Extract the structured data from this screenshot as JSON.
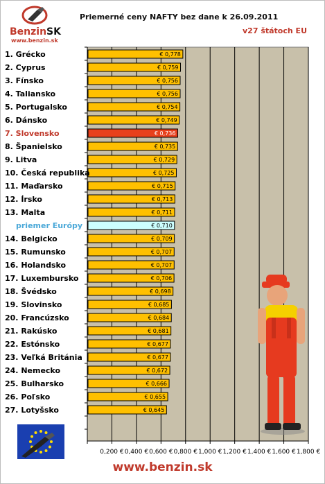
{
  "header": {
    "title": "Priemerné ceny NAFTY bez dane k 26.09.2011",
    "subtitle": "v27 štátoch EU"
  },
  "logo": {
    "brand": "Benzin",
    "brand_suffix": "SK",
    "url": "www.benzin.sk"
  },
  "footer": {
    "url": "www.benzin.sk"
  },
  "colors": {
    "plot_background": "#c8c0aa",
    "bar": "#ffc000",
    "highlight_bar": "#e8401c",
    "average_bar": "#ccffff",
    "highlight_label": "#c0392b",
    "average_label": "#4aa8d8",
    "grid": "#000000"
  },
  "chart_data": {
    "type": "bar",
    "orientation": "horizontal",
    "categories": [
      "1. Grécko",
      "2. Cyprus",
      "3. Fínsko",
      "4. Taliansko",
      "5. Portugalsko",
      "6. Dánsko",
      "7. Slovensko",
      "8. Španielsko",
      "9. Litva",
      "10. Česká republika",
      "11. Maďarsko",
      "12. Írsko",
      "13. Malta",
      "priemer Európy",
      "14. Belgicko",
      "15. Rumunsko",
      "16. Holandsko",
      "17. Luxembursko",
      "18. Švédsko",
      "19. Slovinsko",
      "20. Francúzsko",
      "21. Rakúsko",
      "22. Estónsko",
      "23. Veľká Británia",
      "24. Nemecko",
      "25. Bulharsko",
      "26. Poľsko",
      "27. Lotyšsko"
    ],
    "values": [
      0.778,
      0.759,
      0.756,
      0.756,
      0.754,
      0.749,
      0.736,
      0.735,
      0.729,
      0.725,
      0.715,
      0.713,
      0.711,
      0.71,
      0.709,
      0.707,
      0.707,
      0.706,
      0.698,
      0.685,
      0.684,
      0.681,
      0.677,
      0.677,
      0.672,
      0.666,
      0.655,
      0.645
    ],
    "value_labels": [
      "€ 0,778",
      "€ 0,759",
      "€ 0,756",
      "€ 0,756",
      "€ 0,754",
      "€ 0,749",
      "€ 0,736",
      "€ 0,735",
      "€ 0,729",
      "€ 0,725",
      "€ 0,715",
      "€ 0,713",
      "€ 0,711",
      "€ 0,710",
      "€ 0,709",
      "€ 0,707",
      "€ 0,707",
      "€ 0,706",
      "€ 0,698",
      "€ 0,685",
      "€ 0,684",
      "€ 0,681",
      "€ 0,677",
      "€ 0,677",
      "€ 0,672",
      "€ 0,666",
      "€ 0,655",
      "€ 0,645"
    ],
    "highlight": "7. Slovensko",
    "average": "priemer Európy",
    "xlim": [
      0,
      1.8
    ],
    "xticks": [
      0,
      0.2,
      0.4,
      0.6,
      0.8,
      1.0,
      1.2,
      1.4,
      1.6,
      1.8
    ],
    "xtick_labels": [
      "0,200 €",
      "0,400 €",
      "0,600 €",
      "0,800 €",
      "1,000 €",
      "1,200 €",
      "1,400 €",
      "1,600 €",
      "1,800 €"
    ],
    "grid": true
  }
}
